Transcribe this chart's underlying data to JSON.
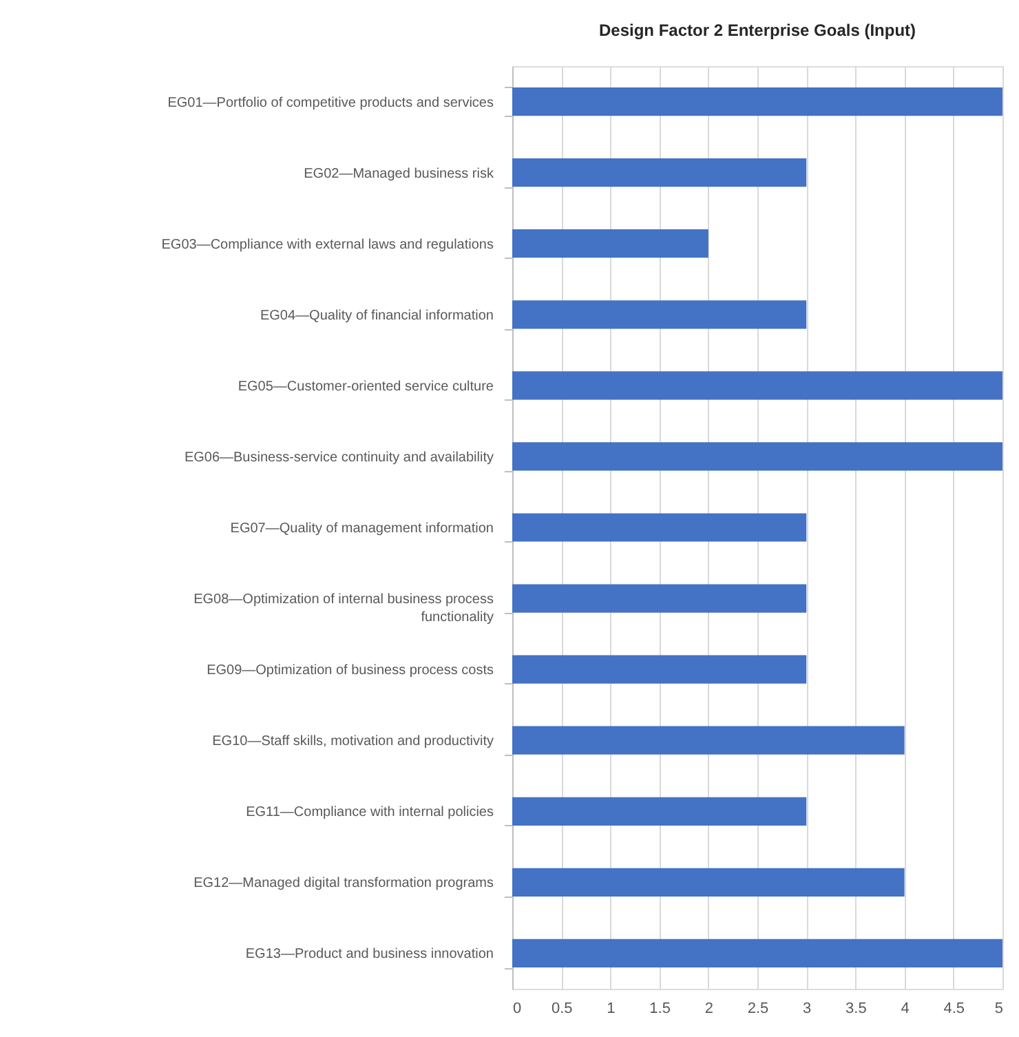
{
  "chart_data": {
    "type": "bar",
    "orientation": "horizontal",
    "title": "Design Factor 2 Enterprise Goals (Input)",
    "categories": [
      "EG01—Portfolio of competitive products and services",
      "EG02—Managed business risk",
      "EG03—Compliance with external laws and regulations",
      "EG04—Quality of financial information",
      "EG05—Customer-oriented service culture",
      "EG06—Business-service continuity and availability",
      "EG07—Quality of management information",
      "EG08—Optimization of internal business process functionality",
      "EG09—Optimization of business process costs",
      "EG10—Staff skills, motivation and productivity",
      "EG11—Compliance with internal policies",
      "EG12—Managed digital transformation programs",
      "EG13—Product and business innovation"
    ],
    "values": [
      5,
      3,
      2,
      3,
      5,
      5,
      3,
      3,
      3,
      4,
      3,
      4,
      5
    ],
    "color": "#4472c4",
    "xlim": [
      0,
      5
    ],
    "xticks": [
      0,
      0.5,
      1,
      1.5,
      2,
      2.5,
      3,
      3.5,
      4,
      4.5,
      5
    ],
    "grid": "x"
  }
}
